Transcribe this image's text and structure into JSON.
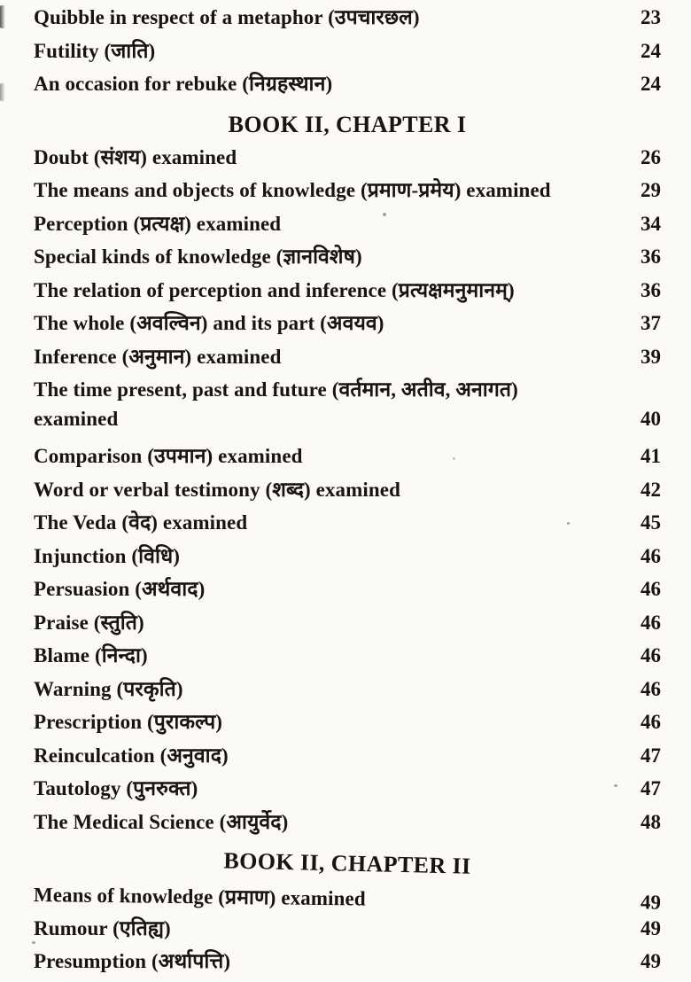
{
  "toc": {
    "rows": [
      {
        "type": "entry",
        "label": "Quibble in respect of a metaphor (उपचारछल)",
        "page": "23"
      },
      {
        "type": "entry",
        "label": "Futility (जाति)",
        "page": "24"
      },
      {
        "type": "entry",
        "label": "An occasion for rebuke (निग्रहस्थान)",
        "page": "24"
      },
      {
        "type": "heading",
        "label": "BOOK II, CHAPTER I",
        "page": ""
      },
      {
        "type": "entry",
        "label": "Doubt (संशय) examined",
        "page": "26"
      },
      {
        "type": "entry",
        "label": "The means and objects of knowledge (प्रमाण-प्रमेय) examined",
        "page": "29"
      },
      {
        "type": "entry",
        "label": "Perception (प्रत्यक्ष) examined",
        "page": "34"
      },
      {
        "type": "entry",
        "label": "Special kinds of knowledge (ज्ञानविशेष)",
        "page": "36"
      },
      {
        "type": "entry",
        "label": "The relation of perception and inference (प्रत्यक्षमनुमानम्)",
        "page": "36"
      },
      {
        "type": "entry",
        "label": "The whole (अवल्विन) and its part (अवयव)",
        "page": "37"
      },
      {
        "type": "entry",
        "label": "Inference (अनुमान) examined",
        "page": "39"
      },
      {
        "type": "entry",
        "label": "The time present, past and future (वर्तमान, अतीव, अनागत)",
        "page": ""
      },
      {
        "type": "entry",
        "label": "examined",
        "page": "40"
      },
      {
        "type": "entry",
        "label": "Comparison (उपमान) examined",
        "page": "41"
      },
      {
        "type": "entry",
        "label": "Word or verbal testimony (शब्द) examined",
        "page": "42"
      },
      {
        "type": "entry",
        "label": "The Veda (वेद) examined",
        "page": "45"
      },
      {
        "type": "entry",
        "label": "Injunction (विधि)",
        "page": "46"
      },
      {
        "type": "entry",
        "label": "Persuasion (अर्थवाद)",
        "page": "46"
      },
      {
        "type": "entry",
        "label": "Praise (स्तुति)",
        "page": "46"
      },
      {
        "type": "entry",
        "label": "Blame (निन्दा)",
        "page": "46"
      },
      {
        "type": "entry",
        "label": "Warning (परकृति)",
        "page": "46"
      },
      {
        "type": "entry",
        "label": "Prescription (पुराकल्प)",
        "page": "46"
      },
      {
        "type": "entry",
        "label": "Reinculcation (अनुवाद)",
        "page": "47"
      },
      {
        "type": "entry",
        "label": "Tautology (पुनरुक्त)",
        "page": "47"
      },
      {
        "type": "entry",
        "label": "The Medical Science (आयुर्वेद)",
        "page": "48"
      },
      {
        "type": "heading",
        "label": "BOOK II, CHAPTER II",
        "page": ""
      },
      {
        "type": "entry",
        "label": "Means of knowledge (प्रमाण) examined",
        "page": "49"
      },
      {
        "type": "entry",
        "label": "Rumour (एतिह्य)",
        "page": "49"
      },
      {
        "type": "entry",
        "label": "Presumption (अर्थापत्ति)",
        "page": "49"
      }
    ]
  }
}
